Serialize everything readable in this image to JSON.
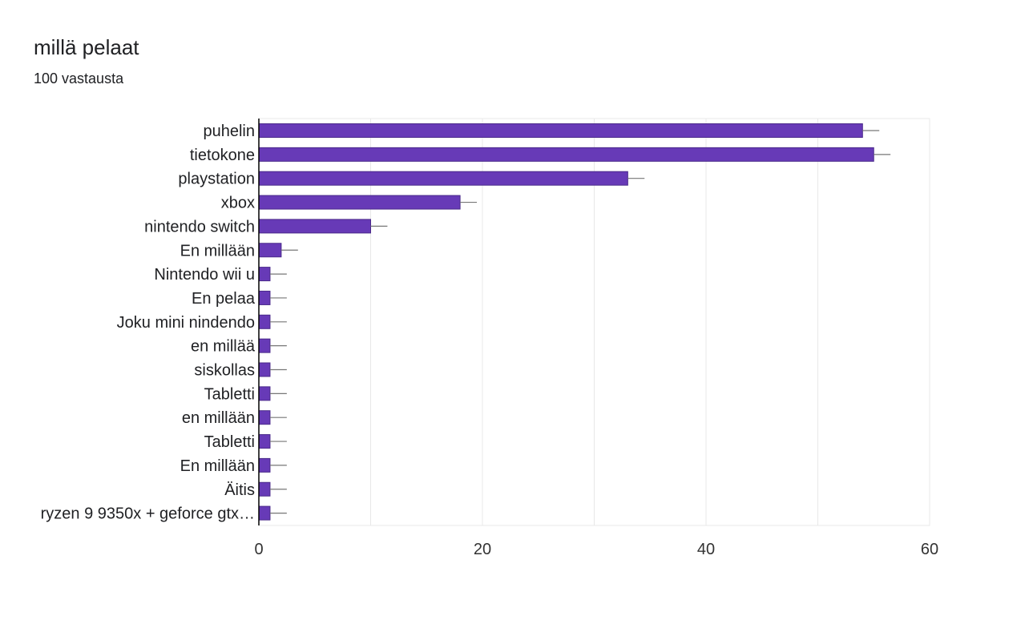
{
  "title": "millä pelaat",
  "subtitle": "100 vastausta",
  "chart_data": {
    "type": "bar",
    "orientation": "horizontal",
    "categories": [
      "puhelin",
      "tietokone",
      "playstation",
      "xbox",
      "nintendo switch",
      "En millään",
      "Nintendo wii u",
      "En pelaa",
      "Joku mini nindendo",
      "en millää",
      "siskollas",
      "Tabletti",
      "en millään",
      "Tabletti",
      "En millään",
      "Äitis",
      "ryzen 9 9350x + geforce gtx…"
    ],
    "values": [
      54,
      55,
      33,
      18,
      10,
      2,
      1,
      1,
      1,
      1,
      1,
      1,
      1,
      1,
      1,
      1,
      1
    ],
    "xlim": [
      0,
      60
    ],
    "xticks": [
      0,
      20,
      40,
      60
    ],
    "tick_labels": [
      "0",
      "20",
      "40",
      "60"
    ],
    "error_bar_extent": 1.5,
    "grid": true,
    "colors": {
      "bar": "#673ab7",
      "bar_stroke": "#4a2a8a",
      "grid": "#e8e8e8",
      "axis": "#000000",
      "error_bar": "#777777"
    }
  }
}
